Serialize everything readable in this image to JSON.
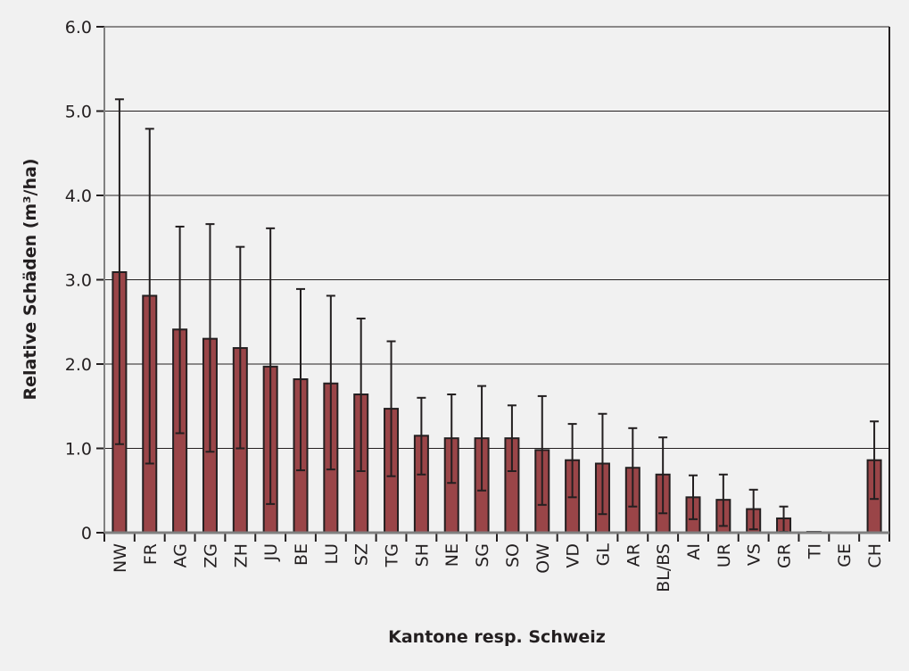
{
  "chart_data": {
    "type": "bar",
    "title": "",
    "xlabel": "Kantone resp. Schweiz",
    "ylabel": "Relative Schäden (m³/ha)",
    "ylim": [
      0,
      6
    ],
    "yticks": [
      "0",
      "1.0",
      "2.0",
      "3.0",
      "4.0",
      "5.0",
      "6.0"
    ],
    "grid": true,
    "categories": [
      "NW",
      "FR",
      "AG",
      "ZG",
      "ZH",
      "JU",
      "BE",
      "LU",
      "SZ",
      "TG",
      "SH",
      "NE",
      "SG",
      "SO",
      "OW",
      "VD",
      "GL",
      "AR",
      "BL/BS",
      "AI",
      "UR",
      "VS",
      "GR",
      "TI",
      "GE",
      "CH"
    ],
    "values": [
      3.09,
      2.81,
      2.41,
      2.3,
      2.19,
      1.97,
      1.82,
      1.77,
      1.64,
      1.47,
      1.15,
      1.12,
      1.12,
      1.12,
      0.98,
      0.86,
      0.82,
      0.77,
      0.69,
      0.42,
      0.39,
      0.28,
      0.17,
      0.01,
      0.005,
      0.86
    ],
    "error_high": [
      5.14,
      4.79,
      3.63,
      3.66,
      3.39,
      3.61,
      2.89,
      2.81,
      2.54,
      2.27,
      1.6,
      1.64,
      1.74,
      1.51,
      1.62,
      1.29,
      1.41,
      1.24,
      1.13,
      0.68,
      0.69,
      0.51,
      0.31,
      0.01,
      0.005,
      1.32
    ],
    "error_low": [
      1.05,
      0.82,
      1.18,
      0.96,
      1.0,
      0.34,
      0.74,
      0.75,
      0.73,
      0.67,
      0.69,
      0.59,
      0.5,
      0.73,
      0.33,
      0.42,
      0.22,
      0.31,
      0.23,
      0.16,
      0.08,
      0.04,
      0.01,
      0.01,
      0.005,
      0.4
    ],
    "colors": {
      "bar": "#9a4548",
      "outline": "#231f20",
      "background": "#f1f1f1",
      "axis": "#808080"
    }
  }
}
